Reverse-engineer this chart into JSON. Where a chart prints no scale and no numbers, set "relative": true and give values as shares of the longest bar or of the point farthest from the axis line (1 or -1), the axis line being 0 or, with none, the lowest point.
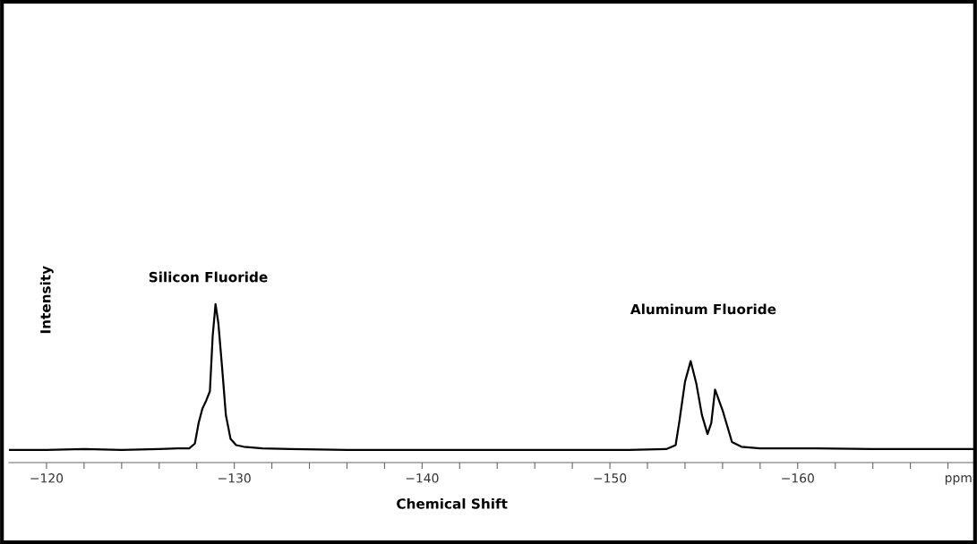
{
  "chart_data": {
    "type": "line",
    "relative": true,
    "xlabel": "Chemical Shift",
    "ylabel": "Intensity",
    "x": [
      -118.0,
      -120.0,
      -122.0,
      -124.0,
      -126.0,
      -127.0,
      -127.6,
      -127.9,
      -128.1,
      -128.3,
      -128.5,
      -128.7,
      -128.85,
      -129.0,
      -129.15,
      -129.35,
      -129.55,
      -129.8,
      -130.1,
      -130.5,
      -131.5,
      -133.0,
      -136.0,
      -140.0,
      -144.0,
      -148.0,
      -151.0,
      -153.0,
      -153.5,
      -153.7,
      -154.0,
      -154.3,
      -154.6,
      -154.9,
      -155.2,
      -155.4,
      -155.6,
      -156.0,
      -156.5,
      -157.0,
      -158.0,
      -161.0,
      -164.0,
      -167.0,
      -169.5
    ],
    "values": [
      0.08,
      0.08,
      0.085,
      0.08,
      0.085,
      0.09,
      0.09,
      0.12,
      0.25,
      0.34,
      0.39,
      0.45,
      0.8,
      1.0,
      0.88,
      0.6,
      0.3,
      0.15,
      0.11,
      0.1,
      0.09,
      0.085,
      0.08,
      0.08,
      0.08,
      0.08,
      0.08,
      0.085,
      0.11,
      0.26,
      0.51,
      0.64,
      0.5,
      0.3,
      0.18,
      0.25,
      0.46,
      0.33,
      0.13,
      0.1,
      0.09,
      0.09,
      0.085,
      0.085,
      0.085
    ],
    "color": "#000000",
    "xlim": [
      -118.0,
      -169.5
    ],
    "xticks": [
      -120,
      {
        "value": -122,
        "label": null
      },
      {
        "value": -124,
        "label": null
      },
      {
        "value": -126,
        "label": null
      },
      {
        "value": -128,
        "label": null
      },
      -130,
      {
        "value": -132,
        "label": null
      },
      {
        "value": -134,
        "label": null
      },
      {
        "value": -136,
        "label": null
      },
      {
        "value": -138,
        "label": null
      },
      -140,
      {
        "value": -142,
        "label": null
      },
      {
        "value": -144,
        "label": null
      },
      {
        "value": -146,
        "label": null
      },
      {
        "value": -148,
        "label": null
      },
      -150,
      {
        "value": -152,
        "label": null
      },
      {
        "value": -154,
        "label": null
      },
      {
        "value": -156,
        "label": null
      },
      {
        "value": -158,
        "label": null
      },
      -160,
      {
        "value": -162,
        "label": null
      },
      {
        "value": -164,
        "label": null
      },
      {
        "value": -166,
        "label": null
      },
      {
        "value": -168,
        "label": null
      }
    ],
    "annotations": [
      "Silicon Fluoride",
      "Aluminum Fluoride",
      "ppm"
    ],
    "grid": false,
    "legend": false,
    "marker": "none",
    "line_style": "solid"
  }
}
